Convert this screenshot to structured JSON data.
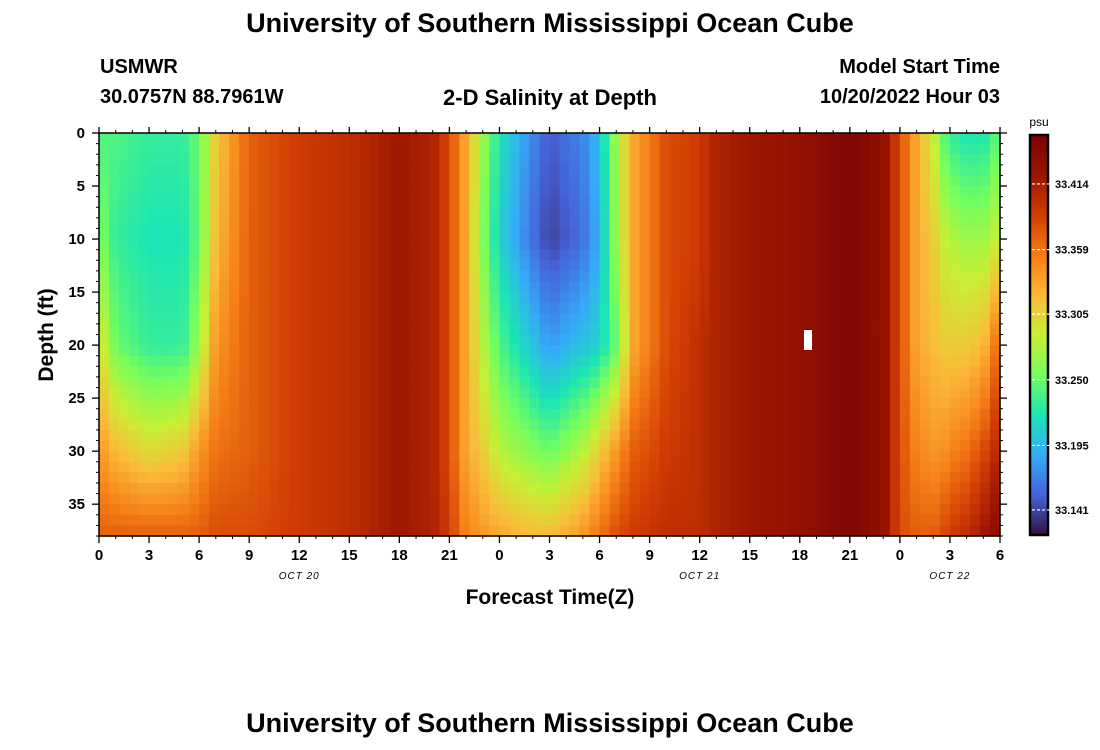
{
  "header": {
    "title": "University of Southern Mississippi Ocean Cube",
    "station": "USMWR",
    "coords": "30.0757N  88.7961W",
    "subtitle": "2-D Salinity at Depth",
    "model_start_label": "Model Start Time",
    "model_start_value": "10/20/2022 Hour 03"
  },
  "footer": {
    "title": "University of Southern Mississippi Ocean Cube"
  },
  "chart_data": {
    "type": "heatmap",
    "title": "2-D Salinity at Depth",
    "xlabel": "Forecast Time(Z)",
    "ylabel": "Depth (ft)",
    "x_tick_labels": [
      "0",
      "3",
      "6",
      "9",
      "12",
      "15",
      "18",
      "21",
      "0",
      "3",
      "6",
      "9",
      "12",
      "15",
      "18",
      "21",
      "0",
      "3",
      "6"
    ],
    "x_range_hours": [
      0,
      54
    ],
    "date_labels": [
      {
        "label": "OCT 20",
        "hour": 12
      },
      {
        "label": "OCT 21",
        "hour": 36
      },
      {
        "label": "OCT 22",
        "hour": 51
      }
    ],
    "y_tick_labels": [
      "0",
      "5",
      "10",
      "15",
      "20",
      "25",
      "30",
      "35"
    ],
    "y_range_ft": [
      0,
      38
    ],
    "y_reversed": true,
    "colorbar": {
      "unit": "psu",
      "tick_labels": [
        "33.414",
        "33.359",
        "33.305",
        "33.250",
        "33.195",
        "33.141"
      ],
      "range": [
        33.12,
        33.455
      ]
    },
    "salinity_profiles": {
      "depths_ft": [
        0,
        10,
        20,
        30,
        38
      ],
      "hours": [
        0,
        1,
        3,
        5,
        6,
        7,
        9,
        12,
        15,
        18,
        20,
        21,
        22,
        23,
        24,
        26,
        27,
        29,
        30,
        31,
        32,
        34,
        36,
        37,
        39,
        42,
        45,
        47,
        48,
        49,
        50,
        50.5,
        51,
        52,
        53,
        54
      ],
      "values": [
        [
          33.24,
          33.26,
          33.3,
          33.34,
          33.37
        ],
        [
          33.24,
          33.23,
          33.25,
          33.32,
          33.37
        ],
        [
          33.23,
          33.22,
          33.23,
          33.3,
          33.37
        ],
        [
          33.23,
          33.22,
          33.23,
          33.31,
          33.37
        ],
        [
          33.25,
          33.25,
          33.27,
          33.34,
          33.37
        ],
        [
          33.31,
          33.32,
          33.34,
          33.36,
          33.38
        ],
        [
          33.37,
          33.37,
          33.37,
          33.37,
          33.38
        ],
        [
          33.39,
          33.39,
          33.39,
          33.39,
          33.39
        ],
        [
          33.4,
          33.4,
          33.4,
          33.4,
          33.4
        ],
        [
          33.42,
          33.42,
          33.42,
          33.42,
          33.42
        ],
        [
          33.41,
          33.41,
          33.41,
          33.41,
          33.41
        ],
        [
          33.38,
          33.38,
          33.38,
          33.38,
          33.39
        ],
        [
          33.33,
          33.33,
          33.33,
          33.33,
          33.35
        ],
        [
          33.27,
          33.26,
          33.28,
          33.31,
          33.34
        ],
        [
          33.22,
          33.21,
          33.24,
          33.28,
          33.33
        ],
        [
          33.17,
          33.16,
          33.2,
          33.26,
          33.32
        ],
        [
          33.15,
          33.14,
          33.18,
          33.25,
          33.32
        ],
        [
          33.17,
          33.16,
          33.2,
          33.28,
          33.34
        ],
        [
          33.2,
          33.19,
          33.21,
          33.31,
          33.36
        ],
        [
          33.27,
          33.27,
          33.25,
          33.34,
          33.38
        ],
        [
          33.33,
          33.33,
          33.33,
          33.37,
          33.39
        ],
        [
          33.38,
          33.38,
          33.38,
          33.39,
          33.4
        ],
        [
          33.39,
          33.39,
          33.4,
          33.4,
          33.4
        ],
        [
          33.41,
          33.41,
          33.41,
          33.41,
          33.41
        ],
        [
          33.42,
          33.42,
          33.42,
          33.42,
          33.42
        ],
        [
          33.43,
          33.43,
          33.43,
          33.43,
          33.43
        ],
        [
          33.45,
          33.45,
          33.45,
          33.45,
          33.45
        ],
        [
          33.43,
          33.43,
          33.43,
          33.43,
          33.43
        ],
        [
          33.38,
          33.38,
          33.38,
          33.38,
          33.38
        ],
        [
          33.33,
          33.33,
          33.33,
          33.35,
          33.37
        ],
        [
          33.29,
          33.31,
          33.32,
          33.34,
          33.37
        ],
        [
          33.25,
          33.29,
          33.31,
          33.34,
          33.38
        ],
        [
          33.23,
          33.28,
          33.31,
          33.35,
          33.39
        ],
        [
          33.22,
          33.27,
          33.31,
          33.36,
          33.4
        ],
        [
          33.22,
          33.27,
          33.32,
          33.38,
          33.42
        ],
        [
          33.25,
          33.29,
          33.37,
          33.41,
          33.44
        ]
      ]
    },
    "colors": {
      "low": "#30123b",
      "mid": "#a4fc3c",
      "high": "#7a0403",
      "tick": "#ffffff"
    }
  }
}
